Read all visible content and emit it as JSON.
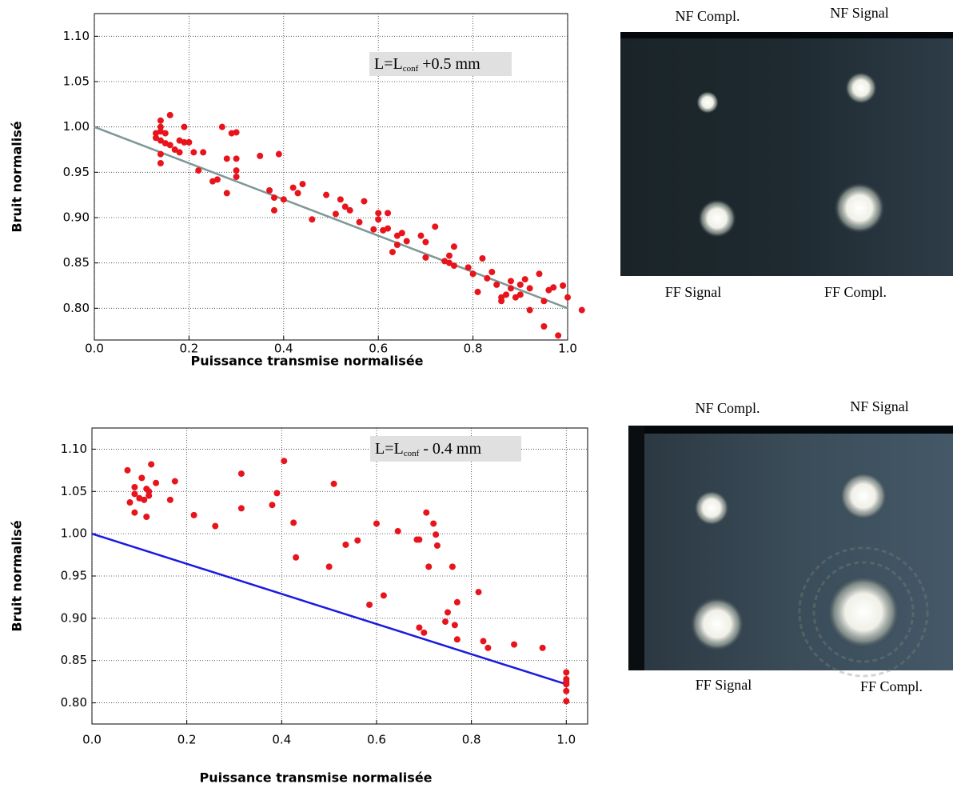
{
  "chart_data": [
    {
      "type": "scatter",
      "xlabel": "Puissance transmise normalisée",
      "ylabel": "Bruit normalisé",
      "annotation": {
        "text": "L=L",
        "subscript": "conf",
        "suffix": " +0.5 mm"
      },
      "xlim": [
        0,
        1.0
      ],
      "ylim": [
        0.765,
        1.125
      ],
      "xticks": [
        {
          "value": 0,
          "label": "0.0"
        },
        0.2,
        0.4,
        0.6,
        0.8,
        {
          "value": 1,
          "label": "1.0"
        }
      ],
      "yticks": [
        {
          "value": 0.8,
          "label": "0.80"
        },
        0.85,
        {
          "value": 0.9,
          "label": "0.90"
        },
        0.95,
        {
          "value": 1,
          "label": "1.00"
        },
        1.05,
        {
          "value": 1.1,
          "label": "1.10"
        }
      ],
      "grid": true,
      "color": "#e8141c",
      "x": [
        0.13,
        0.13,
        0.14,
        0.14,
        0.14,
        0.14,
        0.14,
        0.14,
        0.15,
        0.15,
        0.16,
        0.16,
        0.17,
        0.18,
        0.18,
        0.19,
        0.19,
        0.2,
        0.21,
        0.22,
        0.23,
        0.25,
        0.26,
        0.27,
        0.28,
        0.28,
        0.29,
        0.3,
        0.3,
        0.3,
        0.3,
        0.35,
        0.37,
        0.38,
        0.38,
        0.39,
        0.4,
        0.42,
        0.43,
        0.44,
        0.46,
        0.49,
        0.51,
        0.52,
        0.53,
        0.54,
        0.56,
        0.57,
        0.59,
        0.6,
        0.6,
        0.61,
        0.62,
        0.62,
        0.63,
        0.64,
        0.64,
        0.65,
        0.66,
        0.69,
        0.7,
        0.7,
        0.72,
        0.74,
        0.75,
        0.75,
        0.76,
        0.76,
        0.79,
        0.8,
        0.81,
        0.82,
        0.83,
        0.84,
        0.85,
        0.86,
        0.86,
        0.87,
        0.88,
        0.88,
        0.89,
        0.9,
        0.9,
        0.91,
        0.92,
        0.92,
        0.94,
        0.95,
        0.95,
        0.96,
        0.97,
        0.98,
        0.99,
        1.0,
        1.03
      ],
      "values": [
        0.993,
        0.988,
        1.0,
        1.007,
        0.995,
        0.985,
        0.97,
        0.96,
        0.982,
        0.993,
        1.013,
        0.98,
        0.975,
        0.972,
        0.985,
        1.0,
        0.983,
        0.983,
        0.972,
        0.952,
        0.972,
        0.94,
        0.942,
        1.0,
        0.965,
        0.927,
        0.993,
        0.994,
        0.965,
        0.952,
        0.945,
        0.968,
        0.93,
        0.922,
        0.908,
        0.97,
        0.92,
        0.933,
        0.927,
        0.937,
        0.898,
        0.925,
        0.904,
        0.92,
        0.912,
        0.908,
        0.895,
        0.918,
        0.887,
        0.898,
        0.905,
        0.886,
        0.905,
        0.888,
        0.862,
        0.88,
        0.87,
        0.883,
        0.874,
        0.88,
        0.873,
        0.856,
        0.89,
        0.852,
        0.858,
        0.85,
        0.868,
        0.847,
        0.845,
        0.838,
        0.818,
        0.855,
        0.833,
        0.84,
        0.826,
        0.812,
        0.808,
        0.815,
        0.83,
        0.822,
        0.812,
        0.815,
        0.826,
        0.832,
        0.798,
        0.822,
        0.838,
        0.78,
        0.808,
        0.82,
        0.823,
        0.77,
        0.825,
        0.812,
        0.798
      ],
      "fit": {
        "x": [
          0,
          1
        ],
        "values": [
          1.0,
          0.8
        ],
        "color": "#7f9898"
      }
    },
    {
      "type": "scatter",
      "xlabel": "Puissance transmise normalisée",
      "ylabel": "Bruit normalisé",
      "annotation": {
        "text": "L=L",
        "subscript": "conf",
        "suffix": " - 0.4 mm"
      },
      "xlim": [
        0,
        1.045
      ],
      "ylim": [
        0.775,
        1.125
      ],
      "xticks": [
        {
          "value": 0,
          "label": "0.0"
        },
        0.2,
        0.4,
        0.6,
        0.8,
        {
          "value": 1,
          "label": "1.0"
        }
      ],
      "yticks": [
        {
          "value": 0.8,
          "label": "0.80"
        },
        0.85,
        {
          "value": 0.9,
          "label": "0.90"
        },
        0.95,
        {
          "value": 1,
          "label": "1.00"
        },
        1.05,
        {
          "value": 1.1,
          "label": "1.10"
        }
      ],
      "grid": true,
      "color": "#e8141c",
      "x": [
        0.075,
        0.08,
        0.09,
        0.09,
        0.09,
        0.1,
        0.105,
        0.11,
        0.115,
        0.115,
        0.12,
        0.12,
        0.125,
        0.135,
        0.165,
        0.175,
        0.215,
        0.26,
        0.315,
        0.315,
        0.38,
        0.39,
        0.405,
        0.425,
        0.43,
        0.5,
        0.51,
        0.535,
        0.56,
        0.585,
        0.6,
        0.615,
        0.645,
        0.685,
        0.69,
        0.69,
        0.7,
        0.705,
        0.71,
        0.72,
        0.725,
        0.728,
        0.745,
        0.75,
        0.76,
        0.765,
        0.77,
        0.77,
        0.815,
        0.825,
        0.835,
        0.89,
        0.95,
        1.0,
        1.0,
        1.0,
        1.0,
        1.0,
        1.0
      ],
      "values": [
        1.075,
        1.037,
        1.025,
        1.047,
        1.055,
        1.042,
        1.066,
        1.04,
        1.02,
        1.053,
        1.045,
        1.05,
        1.082,
        1.06,
        1.04,
        1.062,
        1.022,
        1.009,
        1.071,
        1.03,
        1.034,
        1.048,
        1.086,
        1.013,
        0.972,
        0.961,
        1.059,
        0.987,
        0.992,
        0.916,
        1.012,
        0.927,
        1.003,
        0.993,
        0.889,
        0.993,
        0.883,
        1.025,
        0.961,
        1.012,
        0.999,
        0.986,
        0.896,
        0.907,
        0.961,
        0.892,
        0.875,
        0.919,
        0.931,
        0.873,
        0.865,
        0.869,
        0.865,
        0.836,
        0.828,
        0.825,
        0.814,
        0.802,
        0.822
      ],
      "fit": {
        "x": [
          0,
          1
        ],
        "values": [
          1.0,
          0.822
        ],
        "color": "#1a1ae0"
      }
    }
  ],
  "images": [
    {
      "labels": [
        "NF Compl.",
        "NF Signal",
        "FF Signal",
        "FF Compl."
      ]
    },
    {
      "labels": [
        "NF Compl.",
        "NF Signal",
        "FF Signal",
        "FF Compl."
      ]
    }
  ]
}
